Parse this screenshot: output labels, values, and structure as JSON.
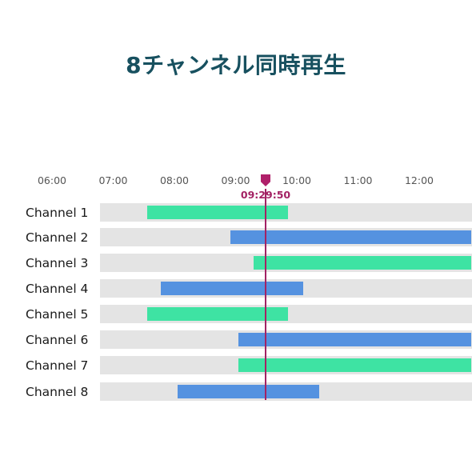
{
  "title": "8チャンネル同時再生",
  "timeline": {
    "ticks": [
      "06:00",
      "07:00",
      "08:00",
      "09:00",
      "10:00",
      "11:00",
      "12:00"
    ],
    "start_hour": 6,
    "end_hour": 12.85
  },
  "playhead": {
    "time": "09:29:50",
    "hour": 9.497
  },
  "colors": {
    "green": "#3ee3a3",
    "blue": "#5592e0",
    "track": "#e4e4e4",
    "playhead": "#a32264"
  },
  "channels": [
    {
      "label": "Channel 1",
      "color": "green",
      "start": 7.55,
      "end": 9.85
    },
    {
      "label": "Channel 2",
      "color": "blue",
      "start": 8.92,
      "end": 12.85
    },
    {
      "label": "Channel 3",
      "color": "green",
      "start": 9.3,
      "end": 12.85
    },
    {
      "label": "Channel 4",
      "color": "blue",
      "start": 7.78,
      "end": 10.1
    },
    {
      "label": "Channel 5",
      "color": "green",
      "start": 7.55,
      "end": 9.85
    },
    {
      "label": "Channel 6",
      "color": "blue",
      "start": 9.04,
      "end": 12.85
    },
    {
      "label": "Channel 7",
      "color": "green",
      "start": 9.04,
      "end": 12.85
    },
    {
      "label": "Channel 8",
      "color": "blue",
      "start": 8.05,
      "end": 10.37
    }
  ]
}
